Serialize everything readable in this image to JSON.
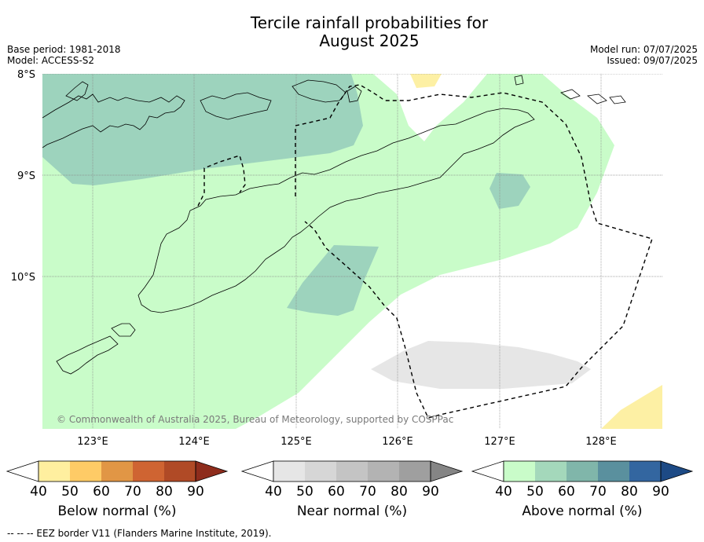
{
  "title_line1": "Tercile rainfall probabilities for",
  "title_line2": "August 2025",
  "meta": {
    "base_period": "Base period: 1981-2018",
    "model": "Model: ACCESS-S2",
    "model_run": "Model run: 07/07/2025",
    "issued": "Issued: 09/07/2025"
  },
  "map": {
    "lat_labels": [
      "8°S",
      "9°S",
      "10°S"
    ],
    "lon_labels": [
      "123°E",
      "124°E",
      "125°E",
      "126°E",
      "127°E",
      "128°E"
    ],
    "copyright": "© Commonwealth of Australia 2025, Bureau of Meteorology, supported by COSPPac",
    "colors": {
      "above_40": "#c9fcc9",
      "above_50": "#9dd3bd",
      "near_40": "#e6e6e6",
      "below_40": "#fdf0a4"
    }
  },
  "colorbars": [
    {
      "title": "Below normal (%)",
      "ticks": [
        "40",
        "50",
        "60",
        "70",
        "80",
        "90"
      ],
      "colors": [
        "#ffef9f",
        "#fecb66",
        "#e19645",
        "#cf6432",
        "#b04a26",
        "#8e2c1c"
      ]
    },
    {
      "title": "Near normal (%)",
      "ticks": [
        "40",
        "50",
        "60",
        "70",
        "80",
        "90"
      ],
      "colors": [
        "#e6e6e6",
        "#d6d6d6",
        "#c4c4c4",
        "#b3b3b3",
        "#9f9f9f",
        "#858585"
      ]
    },
    {
      "title": "Above normal (%)",
      "ticks": [
        "40",
        "50",
        "60",
        "70",
        "80",
        "90"
      ],
      "colors": [
        "#c9fcc9",
        "#a4d8bb",
        "#80b6aa",
        "#5a909e",
        "#3366a0",
        "#1d4a85"
      ]
    }
  ],
  "footnote": "--  --  -- EEZ border V11 (Flanders Marine Institute, 2019)."
}
